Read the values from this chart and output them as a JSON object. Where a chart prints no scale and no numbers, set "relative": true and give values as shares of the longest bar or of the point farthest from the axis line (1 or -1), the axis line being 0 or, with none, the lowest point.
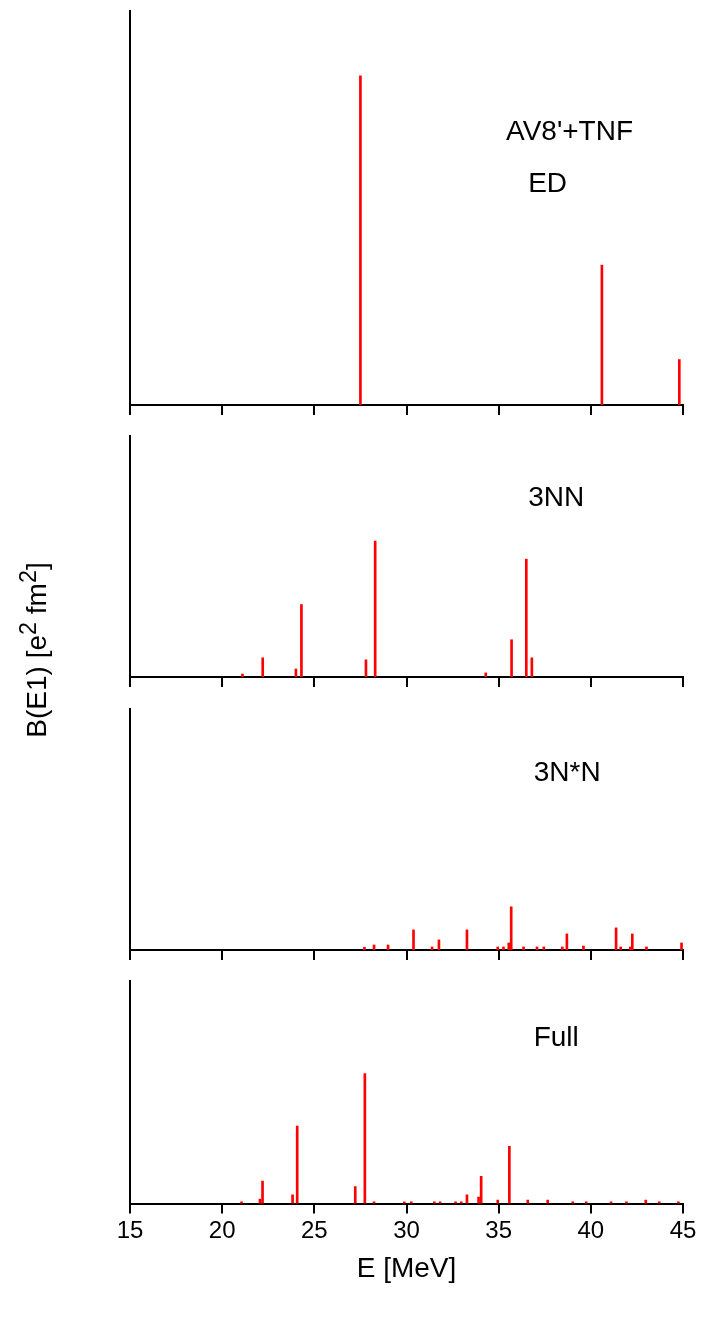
{
  "chart_data": [
    {
      "type": "bar",
      "relative": true,
      "annotations": [
        "AV8'+TNF",
        "ED"
      ],
      "ylabel": "B(E1) [e$^{2}$ fm$^{2}$]",
      "x": [
        27.5,
        40.6,
        44.8
      ],
      "values": [
        1,
        0.425,
        0.138
      ],
      "color": "#ff0000",
      "xlim": [
        15,
        45
      ],
      "xticks": [
        15,
        20,
        25,
        30,
        35,
        40,
        45
      ],
      "tick_labels": false,
      "legend": false,
      "grid": false
    },
    {
      "type": "bar",
      "relative": true,
      "annotations": [
        "3NN"
      ],
      "x": [
        21.1,
        22.2,
        24.0,
        24.3,
        27.8,
        28.3,
        34.3,
        35.7,
        36.5,
        36.8
      ],
      "values": [
        0.022,
        0.141,
        0.059,
        0.533,
        0.126,
        1,
        0.03,
        0.274,
        0.867,
        0.141
      ],
      "color": "#ff0000",
      "xlim": [
        15,
        45
      ],
      "xticks": [
        15,
        20,
        25,
        30,
        35,
        40,
        45
      ],
      "tick_labels": false,
      "legend": false,
      "grid": false
    },
    {
      "type": "bar",
      "relative": true,
      "annotations": [
        "3N*N"
      ],
      "x": [
        27.72,
        28.24,
        29.0,
        30.38,
        31.39,
        31.76,
        33.28,
        34.95,
        35.26,
        35.55,
        35.68,
        36.35,
        37.08,
        37.45,
        38.45,
        38.7,
        39.6,
        41.37,
        41.62,
        42.14,
        42.25,
        43.02,
        44.92
      ],
      "values": [
        0.063,
        0.116,
        0.116,
        0.465,
        0.07,
        0.233,
        0.465,
        0.07,
        0.07,
        0.163,
        1,
        0.07,
        0.07,
        0.07,
        0.07,
        0.372,
        0.093,
        0.512,
        0.07,
        0.07,
        0.372,
        0.07,
        0.163
      ],
      "color": "#ff0000",
      "xlim": [
        15,
        45
      ],
      "xticks": [
        15,
        20,
        25,
        30,
        35,
        40,
        45
      ],
      "tick_labels": false,
      "legend": false,
      "grid": false
    },
    {
      "type": "bar",
      "relative": true,
      "annotations": [
        "Full"
      ],
      "xlabel": "E [MeV]",
      "x": [
        21.05,
        22.05,
        22.19,
        23.82,
        24.07,
        27.22,
        27.74,
        28.24,
        29.88,
        30.26,
        31.51,
        31.82,
        32.66,
        32.97,
        33.28,
        33.91,
        34.05,
        34.95,
        35.58,
        36.58,
        37.66,
        39.02,
        39.75,
        41.1,
        41.93,
        42.98,
        43.71,
        44.75
      ],
      "values": [
        0.014,
        0.035,
        0.174,
        0.068,
        0.596,
        0.131,
        1,
        0.014,
        0.014,
        0.014,
        0.014,
        0.014,
        0.014,
        0.014,
        0.068,
        0.05,
        0.21,
        0.028,
        0.44,
        0.028,
        0.028,
        0.014,
        0.014,
        0.014,
        0.014,
        0.028,
        0.014,
        0.014
      ],
      "color": "#ff0000",
      "xlim": [
        15,
        45
      ],
      "xticks": [
        15,
        20,
        25,
        30,
        35,
        40,
        45
      ],
      "tick_labels": "x",
      "legend": false,
      "grid": false
    }
  ]
}
